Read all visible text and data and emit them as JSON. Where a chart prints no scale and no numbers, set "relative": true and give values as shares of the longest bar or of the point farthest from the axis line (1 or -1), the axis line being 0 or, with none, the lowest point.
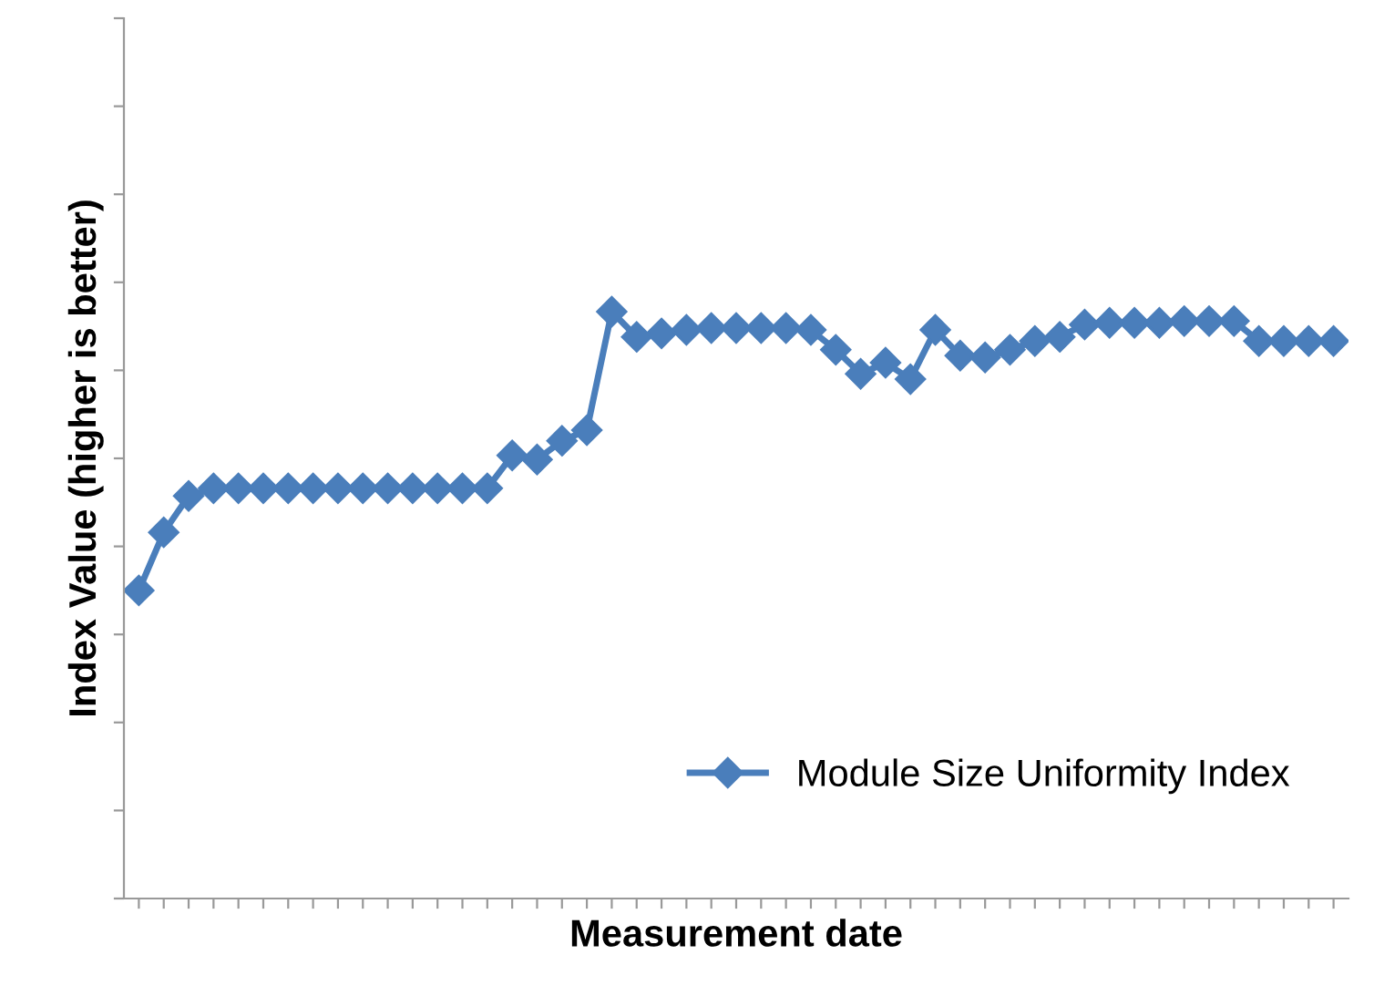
{
  "chart_data": {
    "type": "line",
    "xlabel": "Measurement date",
    "ylabel": "Index Value (higher is better)",
    "relative": true,
    "tick_labels": false,
    "legend": "bottom right",
    "marker": "diamond",
    "line_style": "solid",
    "categories": [
      null,
      null,
      null,
      null,
      null,
      null,
      null,
      null,
      null,
      null,
      null,
      null,
      null,
      null,
      null,
      null,
      null,
      null,
      null,
      null,
      null,
      null,
      null,
      null,
      null,
      null,
      null,
      null,
      null,
      null,
      null,
      null,
      null,
      null,
      null,
      null,
      null,
      null,
      null,
      null,
      null,
      null,
      null,
      null,
      null,
      null,
      null,
      null,
      null
    ],
    "series": [
      {
        "name": "Module Size Uniformity Index",
        "color": "#4a7ebb",
        "values": [
          0.525,
          0.624,
          0.686,
          0.699,
          0.699,
          0.699,
          0.699,
          0.699,
          0.699,
          0.699,
          0.699,
          0.699,
          0.699,
          0.699,
          0.699,
          0.755,
          0.748,
          0.78,
          0.798,
          1.0,
          0.957,
          0.963,
          0.969,
          0.972,
          0.972,
          0.972,
          0.972,
          0.969,
          0.935,
          0.894,
          0.913,
          0.885,
          0.969,
          0.925,
          0.922,
          0.935,
          0.95,
          0.957,
          0.978,
          0.981,
          0.981,
          0.981,
          0.984,
          0.984,
          0.984,
          0.95,
          0.95,
          0.95,
          0.95
        ]
      }
    ]
  }
}
